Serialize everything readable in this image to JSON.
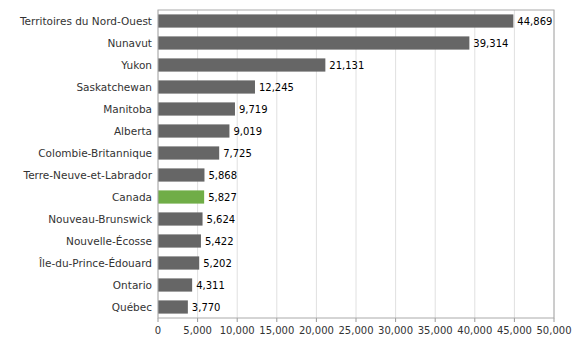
{
  "chart_data": {
    "type": "bar",
    "orientation": "horizontal",
    "categories": [
      "Territoires du Nord-Ouest",
      "Nunavut",
      "Yukon",
      "Saskatchewan",
      "Manitoba",
      "Alberta",
      "Colombie-Britannique",
      "Terre-Neuve-et-Labrador",
      "Canada",
      "Nouveau-Brunswick",
      "Nouvelle-Écosse",
      "Île-du-Prince-Édouard",
      "Ontario",
      "Québec"
    ],
    "values": [
      44869,
      39314,
      21131,
      12245,
      9719,
      9019,
      7725,
      5868,
      5827,
      5624,
      5422,
      5202,
      4311,
      3770
    ],
    "value_labels": [
      "44,869",
      "39,314",
      "21,131",
      "12,245",
      "9,719",
      "9,019",
      "7,725",
      "5,868",
      "5,827",
      "5,624",
      "5,422",
      "5,202",
      "4,311",
      "3,770"
    ],
    "data_labels": true,
    "colors": [
      "#666666",
      "#666666",
      "#666666",
      "#666666",
      "#666666",
      "#666666",
      "#666666",
      "#666666",
      "#70ad47",
      "#666666",
      "#666666",
      "#666666",
      "#666666",
      "#666666"
    ],
    "xlim": [
      0,
      50000
    ],
    "xticks": [
      0,
      {
        "value": 5000,
        "label": "5,000"
      },
      {
        "value": 10000,
        "label": "10,000"
      },
      {
        "value": 15000,
        "label": "15,000"
      },
      {
        "value": 20000,
        "label": "20,000"
      },
      {
        "value": 25000,
        "label": "25,000"
      },
      {
        "value": 30000,
        "label": "30,000"
      },
      {
        "value": 35000,
        "label": "35,000"
      },
      {
        "value": 40000,
        "label": "40,000"
      },
      {
        "value": 45000,
        "label": "45,000"
      },
      {
        "value": 50000,
        "label": "50,000"
      }
    ],
    "grid": true
  }
}
